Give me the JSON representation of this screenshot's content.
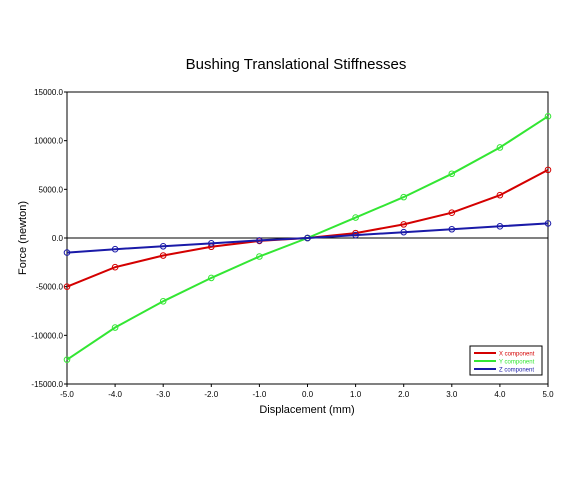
{
  "chart_data": {
    "type": "line",
    "title": "Bushing Translational Stiffnesses",
    "xlabel": "Displacement (mm)",
    "ylabel": "Force (newton)",
    "xlim": [
      -5.0,
      5.0
    ],
    "ylim": [
      -15000.0,
      15000.0
    ],
    "x_ticks": [
      "-5.0",
      "-4.0",
      "-3.0",
      "-2.0",
      "-1.0",
      "0.0",
      "1.0",
      "2.0",
      "3.0",
      "4.0",
      "5.0"
    ],
    "y_ticks": [
      "-15000.0",
      "-10000.0",
      "-5000.0",
      "0.0",
      "5000.0",
      "10000.0",
      "15000.0"
    ],
    "grid": true,
    "legend_position": "bottom-right",
    "x": [
      -5,
      -4,
      -3,
      -2,
      -1,
      0,
      1,
      2,
      3,
      4,
      5
    ],
    "series": [
      {
        "name": "X component",
        "color": "#d40000",
        "values": [
          -5000,
          -3000,
          -1800,
          -900,
          -300,
          0,
          500,
          1400,
          2600,
          4400,
          7000
        ]
      },
      {
        "name": "Y component",
        "color": "#33e633",
        "values": [
          -12500,
          -9200,
          -6500,
          -4100,
          -1900,
          0,
          2100,
          4200,
          6600,
          9300,
          12500
        ]
      },
      {
        "name": "Z component",
        "color": "#1a1aa8",
        "values": [
          -1500,
          -1150,
          -850,
          -550,
          -250,
          0,
          300,
          600,
          900,
          1200,
          1500
        ]
      }
    ]
  }
}
